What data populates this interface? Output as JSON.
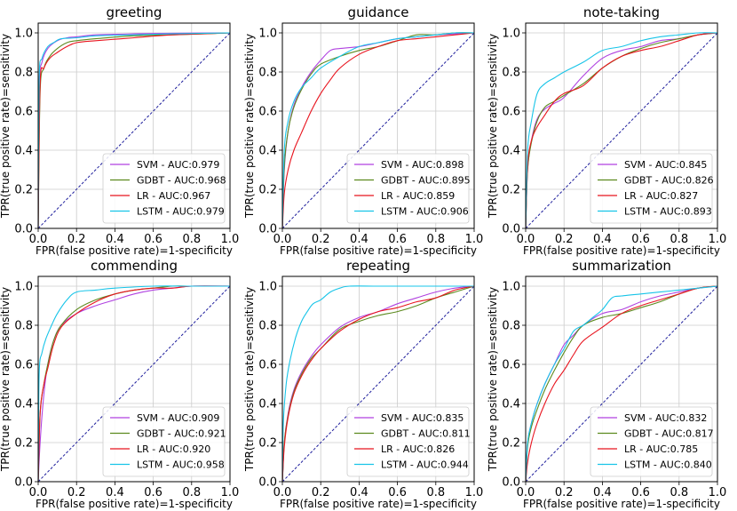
{
  "colors": {
    "SVM": "#b042e0",
    "GDBT": "#5c8a1e",
    "LR": "#e8141e",
    "LSTM": "#17c4e8",
    "diagonal": "#1e1e9c",
    "grid": "#cccccc"
  },
  "chart_data": [
    {
      "type": "line",
      "title": "greeting",
      "xlabel": "FPR(false positive rate)=1-specificity",
      "ylabel": "TPR(true positive rate)=sensitivity",
      "xlim": [
        0,
        1
      ],
      "ylim": [
        0,
        1.05
      ],
      "xticks": [
        "0.0",
        "0.2",
        "0.4",
        "0.6",
        "0.8",
        "1.0"
      ],
      "yticks": [
        "0.0",
        "0.2",
        "0.4",
        "0.6",
        "0.8",
        "1.0"
      ],
      "legend_position": "lower-right",
      "series": [
        {
          "name": "SVM",
          "legend": "SVM - AUC:0.979",
          "x": [
            0,
            0.005,
            0.02,
            0.05,
            0.1,
            0.15,
            0.2,
            0.3,
            0.5,
            0.7,
            1
          ],
          "y": [
            0,
            0.72,
            0.85,
            0.92,
            0.96,
            0.975,
            0.98,
            0.99,
            0.995,
            0.998,
            1
          ]
        },
        {
          "name": "GDBT",
          "legend": "GDBT - AUC:0.968",
          "x": [
            0,
            0.01,
            0.03,
            0.06,
            0.1,
            0.15,
            0.2,
            0.3,
            0.5,
            0.7,
            1
          ],
          "y": [
            0,
            0.7,
            0.82,
            0.88,
            0.92,
            0.95,
            0.96,
            0.97,
            0.985,
            0.99,
            1
          ]
        },
        {
          "name": "LR",
          "legend": "LR - AUC:0.967",
          "x": [
            0,
            0.01,
            0.03,
            0.06,
            0.1,
            0.15,
            0.2,
            0.3,
            0.5,
            0.7,
            1
          ],
          "y": [
            0,
            0.74,
            0.82,
            0.87,
            0.9,
            0.93,
            0.95,
            0.96,
            0.975,
            0.99,
            1
          ]
        },
        {
          "name": "LSTM",
          "legend": "LSTM - AUC:0.979",
          "x": [
            0,
            0.005,
            0.02,
            0.05,
            0.08,
            0.12,
            0.2,
            0.3,
            0.5,
            0.7,
            1
          ],
          "y": [
            0,
            0.76,
            0.87,
            0.93,
            0.95,
            0.97,
            0.975,
            0.985,
            0.99,
            0.995,
            1
          ]
        }
      ]
    },
    {
      "type": "line",
      "title": "guidance",
      "xlabel": "FPR(false positive rate)=1-specificity",
      "ylabel": "TPR(true positive rate)=sensitivity",
      "xlim": [
        0,
        1
      ],
      "ylim": [
        0,
        1.05
      ],
      "xticks": [
        "0.0",
        "0.2",
        "0.4",
        "0.6",
        "0.8",
        "1.0"
      ],
      "yticks": [
        "0.0",
        "0.2",
        "0.4",
        "0.6",
        "0.8",
        "1.0"
      ],
      "legend_position": "lower-right",
      "series": [
        {
          "name": "SVM",
          "legend": "SVM - AUC:0.898",
          "x": [
            0,
            0.01,
            0.03,
            0.06,
            0.1,
            0.15,
            0.2,
            0.25,
            0.3,
            0.4,
            0.5,
            0.6,
            0.7,
            0.8,
            0.9,
            1
          ],
          "y": [
            0,
            0.3,
            0.5,
            0.63,
            0.72,
            0.8,
            0.86,
            0.91,
            0.92,
            0.93,
            0.95,
            0.97,
            0.98,
            0.99,
            0.995,
            1
          ]
        },
        {
          "name": "GDBT",
          "legend": "GDBT - AUC:0.895",
          "x": [
            0,
            0.01,
            0.03,
            0.06,
            0.1,
            0.15,
            0.2,
            0.3,
            0.4,
            0.5,
            0.6,
            0.7,
            0.8,
            0.9,
            1
          ],
          "y": [
            0,
            0.32,
            0.5,
            0.62,
            0.71,
            0.79,
            0.84,
            0.88,
            0.91,
            0.93,
            0.96,
            0.99,
            0.99,
            1,
            1
          ]
        },
        {
          "name": "LR",
          "legend": "LR - AUC:0.859",
          "x": [
            0,
            0.01,
            0.03,
            0.06,
            0.1,
            0.15,
            0.2,
            0.25,
            0.3,
            0.4,
            0.5,
            0.6,
            0.7,
            0.8,
            0.9,
            1
          ],
          "y": [
            0,
            0.18,
            0.3,
            0.4,
            0.49,
            0.6,
            0.69,
            0.76,
            0.82,
            0.89,
            0.93,
            0.96,
            0.97,
            0.98,
            0.99,
            1
          ]
        },
        {
          "name": "LSTM",
          "legend": "LSTM - AUC:0.906",
          "x": [
            0,
            0.01,
            0.03,
            0.06,
            0.1,
            0.15,
            0.2,
            0.3,
            0.4,
            0.5,
            0.6,
            0.7,
            0.8,
            0.9,
            1
          ],
          "y": [
            0,
            0.4,
            0.55,
            0.65,
            0.72,
            0.77,
            0.82,
            0.88,
            0.93,
            0.95,
            0.97,
            0.98,
            0.99,
            1,
            1
          ]
        }
      ]
    },
    {
      "type": "line",
      "title": "note-taking",
      "xlabel": "FPR(false positive rate)=1-specificity",
      "ylabel": "TPR(true positive rate)=sensitivity",
      "xlim": [
        0,
        1
      ],
      "ylim": [
        0,
        1.05
      ],
      "xticks": [
        "0.0",
        "0.2",
        "0.4",
        "0.6",
        "0.8",
        "1.0"
      ],
      "yticks": [
        "0.0",
        "0.2",
        "0.4",
        "0.6",
        "0.8",
        "1.0"
      ],
      "legend_position": "lower-right",
      "series": [
        {
          "name": "SVM",
          "legend": "SVM - AUC:0.845",
          "x": [
            0,
            0.01,
            0.03,
            0.06,
            0.1,
            0.15,
            0.2,
            0.3,
            0.4,
            0.5,
            0.6,
            0.7,
            0.8,
            0.9,
            1
          ],
          "y": [
            0,
            0.3,
            0.45,
            0.56,
            0.61,
            0.64,
            0.67,
            0.78,
            0.87,
            0.91,
            0.93,
            0.96,
            0.97,
            0.99,
            1
          ]
        },
        {
          "name": "GDBT",
          "legend": "GDBT - AUC:0.826",
          "x": [
            0,
            0.01,
            0.03,
            0.06,
            0.1,
            0.15,
            0.2,
            0.3,
            0.4,
            0.5,
            0.6,
            0.7,
            0.8,
            0.9,
            1
          ],
          "y": [
            0,
            0.3,
            0.44,
            0.55,
            0.62,
            0.65,
            0.68,
            0.74,
            0.82,
            0.88,
            0.92,
            0.95,
            0.97,
            0.99,
            1
          ]
        },
        {
          "name": "LR",
          "legend": "LR - AUC:0.827",
          "x": [
            0,
            0.01,
            0.03,
            0.06,
            0.1,
            0.15,
            0.2,
            0.3,
            0.4,
            0.5,
            0.6,
            0.7,
            0.8,
            0.9,
            1
          ],
          "y": [
            0,
            0.32,
            0.45,
            0.52,
            0.58,
            0.65,
            0.69,
            0.73,
            0.82,
            0.88,
            0.91,
            0.93,
            0.96,
            0.99,
            1
          ]
        },
        {
          "name": "LSTM",
          "legend": "LSTM - AUC:0.893",
          "x": [
            0,
            0.01,
            0.03,
            0.06,
            0.1,
            0.15,
            0.2,
            0.3,
            0.4,
            0.5,
            0.6,
            0.7,
            0.8,
            0.9,
            1
          ],
          "y": [
            0,
            0.4,
            0.55,
            0.69,
            0.74,
            0.77,
            0.8,
            0.85,
            0.91,
            0.93,
            0.96,
            0.98,
            0.99,
            1,
            1
          ]
        }
      ]
    },
    {
      "type": "line",
      "title": "commending",
      "xlabel": "FPR(false positive rate)=1-specificity",
      "ylabel": "TPR(true positive rate)=sensitivity",
      "xlim": [
        0,
        1
      ],
      "ylim": [
        0,
        1.05
      ],
      "xticks": [
        "0.0",
        "0.2",
        "0.4",
        "0.6",
        "0.8",
        "1.0"
      ],
      "yticks": [
        "0.0",
        "0.2",
        "0.4",
        "0.6",
        "0.8",
        "1.0"
      ],
      "legend_position": "lower-right",
      "series": [
        {
          "name": "SVM",
          "legend": "SVM - AUC:0.909",
          "x": [
            0,
            0.01,
            0.03,
            0.05,
            0.08,
            0.12,
            0.2,
            0.3,
            0.4,
            0.5,
            0.6,
            0.7,
            0.8,
            1
          ],
          "y": [
            0,
            0.2,
            0.45,
            0.6,
            0.72,
            0.8,
            0.86,
            0.9,
            0.93,
            0.96,
            0.98,
            0.99,
            1,
            1
          ]
        },
        {
          "name": "GDBT",
          "legend": "GDBT - AUC:0.921",
          "x": [
            0,
            0.01,
            0.03,
            0.05,
            0.08,
            0.12,
            0.2,
            0.3,
            0.4,
            0.5,
            0.6,
            0.7,
            0.8,
            1
          ],
          "y": [
            0,
            0.35,
            0.5,
            0.6,
            0.72,
            0.8,
            0.88,
            0.93,
            0.96,
            0.98,
            0.99,
            1,
            1,
            1
          ]
        },
        {
          "name": "LR",
          "legend": "LR - AUC:0.920",
          "x": [
            0,
            0.01,
            0.03,
            0.05,
            0.08,
            0.12,
            0.2,
            0.3,
            0.4,
            0.5,
            0.6,
            0.7,
            0.8,
            1
          ],
          "y": [
            0,
            0.35,
            0.5,
            0.58,
            0.7,
            0.79,
            0.86,
            0.92,
            0.96,
            0.98,
            0.99,
            0.99,
            1,
            1
          ]
        },
        {
          "name": "LSTM",
          "legend": "LSTM - AUC:0.958",
          "x": [
            0,
            0.005,
            0.02,
            0.04,
            0.07,
            0.1,
            0.15,
            0.2,
            0.3,
            0.4,
            0.6,
            0.8,
            1
          ],
          "y": [
            0,
            0.55,
            0.66,
            0.73,
            0.8,
            0.86,
            0.93,
            0.97,
            0.98,
            0.99,
            1,
            1,
            1
          ]
        }
      ]
    },
    {
      "type": "line",
      "title": "repeating",
      "xlabel": "FPR(false positive rate)=1-specificity",
      "ylabel": "TPR(true positive rate)=sensitivity",
      "xlim": [
        0,
        1
      ],
      "ylim": [
        0,
        1.05
      ],
      "xticks": [
        "0.0",
        "0.2",
        "0.4",
        "0.6",
        "0.8",
        "1.0"
      ],
      "yticks": [
        "0.0",
        "0.2",
        "0.4",
        "0.6",
        "0.8",
        "1.0"
      ],
      "legend_position": "lower-right",
      "series": [
        {
          "name": "SVM",
          "legend": "SVM - AUC:0.835",
          "x": [
            0,
            0.01,
            0.03,
            0.06,
            0.1,
            0.15,
            0.2,
            0.3,
            0.4,
            0.5,
            0.6,
            0.7,
            0.8,
            0.9,
            1
          ],
          "y": [
            0,
            0.2,
            0.35,
            0.47,
            0.56,
            0.64,
            0.7,
            0.79,
            0.84,
            0.87,
            0.91,
            0.94,
            0.97,
            0.99,
            1
          ]
        },
        {
          "name": "GDBT",
          "legend": "GDBT - AUC:0.811",
          "x": [
            0,
            0.01,
            0.03,
            0.06,
            0.1,
            0.15,
            0.2,
            0.3,
            0.4,
            0.5,
            0.6,
            0.7,
            0.8,
            0.9,
            1
          ],
          "y": [
            0,
            0.2,
            0.34,
            0.46,
            0.55,
            0.63,
            0.68,
            0.78,
            0.82,
            0.85,
            0.87,
            0.9,
            0.94,
            0.97,
            1
          ]
        },
        {
          "name": "LR",
          "legend": "LR - AUC:0.826",
          "x": [
            0,
            0.01,
            0.03,
            0.06,
            0.1,
            0.15,
            0.2,
            0.3,
            0.4,
            0.5,
            0.6,
            0.7,
            0.8,
            0.9,
            1
          ],
          "y": [
            0,
            0.18,
            0.33,
            0.45,
            0.54,
            0.62,
            0.68,
            0.77,
            0.83,
            0.87,
            0.89,
            0.92,
            0.94,
            0.98,
            1
          ]
        },
        {
          "name": "LSTM",
          "legend": "LSTM - AUC:0.944",
          "x": [
            0,
            0.005,
            0.02,
            0.04,
            0.07,
            0.1,
            0.13,
            0.16,
            0.2,
            0.25,
            0.3,
            0.35,
            0.5,
            0.7,
            1
          ],
          "y": [
            0,
            0.3,
            0.5,
            0.62,
            0.74,
            0.82,
            0.87,
            0.91,
            0.93,
            0.97,
            0.99,
            1,
            1,
            1,
            1
          ]
        }
      ]
    },
    {
      "type": "line",
      "title": "summarization",
      "xlabel": "FPR(false positive rate)=1-specificity",
      "ylabel": "TPR(true positive rate)=sensitivity",
      "xlim": [
        0,
        1
      ],
      "ylim": [
        0,
        1.05
      ],
      "xticks": [
        "0.0",
        "0.2",
        "0.4",
        "0.6",
        "0.8",
        "1.0"
      ],
      "yticks": [
        "0.0",
        "0.2",
        "0.4",
        "0.6",
        "0.8",
        "1.0"
      ],
      "legend_position": "lower-right",
      "series": [
        {
          "name": "SVM",
          "legend": "SVM - AUC:0.832",
          "x": [
            0,
            0.01,
            0.03,
            0.06,
            0.1,
            0.15,
            0.2,
            0.25,
            0.3,
            0.4,
            0.5,
            0.6,
            0.7,
            0.8,
            0.9,
            1
          ],
          "y": [
            0,
            0.2,
            0.3,
            0.4,
            0.5,
            0.6,
            0.7,
            0.75,
            0.8,
            0.86,
            0.88,
            0.92,
            0.95,
            0.97,
            0.99,
            1
          ]
        },
        {
          "name": "GDBT",
          "legend": "GDBT - AUC:0.817",
          "x": [
            0,
            0.01,
            0.03,
            0.06,
            0.1,
            0.15,
            0.2,
            0.25,
            0.3,
            0.4,
            0.5,
            0.6,
            0.7,
            0.8,
            0.9,
            1
          ],
          "y": [
            0,
            0.18,
            0.28,
            0.37,
            0.47,
            0.57,
            0.66,
            0.74,
            0.8,
            0.84,
            0.86,
            0.89,
            0.92,
            0.96,
            0.99,
            1
          ]
        },
        {
          "name": "LR",
          "legend": "LR - AUC:0.785",
          "x": [
            0,
            0.01,
            0.03,
            0.06,
            0.1,
            0.15,
            0.2,
            0.25,
            0.3,
            0.4,
            0.5,
            0.6,
            0.7,
            0.8,
            0.9,
            1
          ],
          "y": [
            0,
            0.1,
            0.2,
            0.3,
            0.4,
            0.5,
            0.57,
            0.65,
            0.72,
            0.79,
            0.86,
            0.9,
            0.93,
            0.96,
            0.99,
            1
          ]
        },
        {
          "name": "LSTM",
          "legend": "LSTM - AUC:0.840",
          "x": [
            0,
            0.01,
            0.03,
            0.06,
            0.1,
            0.15,
            0.2,
            0.25,
            0.3,
            0.35,
            0.4,
            0.45,
            0.5,
            0.6,
            0.7,
            0.8,
            0.9,
            1
          ],
          "y": [
            0,
            0.2,
            0.3,
            0.4,
            0.5,
            0.6,
            0.68,
            0.77,
            0.8,
            0.84,
            0.88,
            0.94,
            0.95,
            0.96,
            0.97,
            0.98,
            0.99,
            1
          ]
        }
      ]
    }
  ]
}
